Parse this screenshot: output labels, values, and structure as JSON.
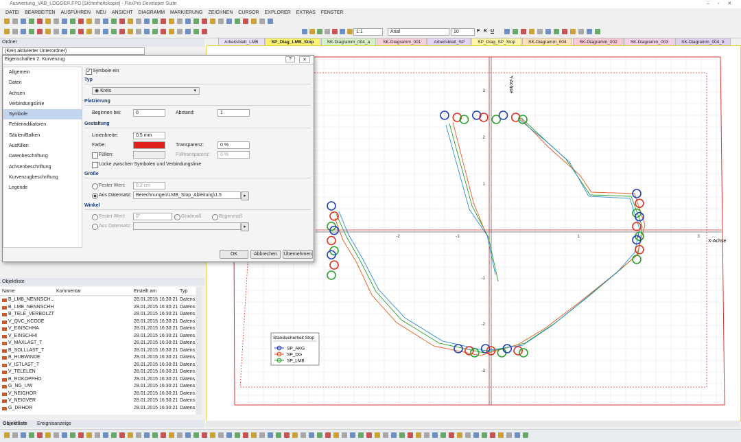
{
  "window": {
    "title": "Auswertung_VAB_LOGGER.FPD [Sicherheitskopie] - FlexPro Developer Suite"
  },
  "menu": [
    "DATEI",
    "BEARBEITEN",
    "AUSFÜHREN",
    "NEU",
    "ANSICHT",
    "DIAGRAMM",
    "MARKIERUNG",
    "ZEICHNEN",
    "CURSOR",
    "EXPLORER",
    "EXTRAS",
    "FENSTER"
  ],
  "toolbar": {
    "zoom": "1:1",
    "font": "Arial",
    "size": "10",
    "bold": "F",
    "italic": "K",
    "underline": "U"
  },
  "folder_panel": {
    "title": "Ordner",
    "combo": "(Kein aktivierter Unterordner)"
  },
  "tabs": [
    "Arbeitsblatt_LMB",
    "SP_Diag_LMB_Stop",
    "SK-Diagramm_004_a",
    "SK-Diagramm_001",
    "Arbeitsblatt_SP",
    "SP_Diag_SP_Stop",
    "SK-Diagramm_004",
    "SK-Diagramm_002",
    "SK-Diagramm_003",
    "SK-Diagramm_004_b"
  ],
  "dialog": {
    "title": "Eigenschaften 2. Kurvenzug",
    "nav": [
      "Allgemein",
      "Daten",
      "Achsen",
      "Verbindungslinie",
      "Symbole",
      "Fehlerindikatoren",
      "Säulen/Balken",
      "Ausfüllen",
      "Datenbeschriftung",
      "Achsenbeschriftung",
      "Kurvenzugbeschriftung",
      "Legende"
    ],
    "symbols_on": "Symbole ein",
    "type_section": "Typ",
    "type_value": "Kreis",
    "placement_section": "Platzierung",
    "start_label": "Beginnen bei:",
    "start_value": "0",
    "spacing_label": "Abstand:",
    "spacing_value": "1",
    "design_section": "Gestaltung",
    "line_width_label": "Linienbreite:",
    "line_width_value": "0,5 mm",
    "color_label": "Farbe:",
    "transparency_label": "Transparenz:",
    "transparency_value": "0 %",
    "fill_label": "Füllen:",
    "fill_transparency_label": "Fülltransparenz:",
    "fill_transparency_value": "0 %",
    "gap_label": "Lücke zwischen Symbolen und Verbindungslinie",
    "size_section": "Größe",
    "size_fixed_label": "Fester Wert:",
    "size_fixed_value": "0,2 cm",
    "size_dataset_label": "Aus Datensatz:",
    "size_dataset_value": "Berechnungen\\LMB_Stop_Ableitung\\1.5",
    "angle_section": "Winkel",
    "angle_fixed_label": "Fester Wert:",
    "angle_fixed_value": "0°",
    "degrees_label": "Gradmaß",
    "radians_label": "Bogenmaß",
    "angle_dataset_label": "Aus Datensatz:",
    "buttons": [
      "OK",
      "Abbrechen",
      "Übernehmen"
    ]
  },
  "object_list": {
    "title": "Objektliste",
    "columns": [
      "Name",
      "Kommentar",
      "Erstellt am",
      "Typ"
    ],
    "rows": [
      [
        "B_LMB_NENNSCH...",
        "28.01.2015 16:30:21",
        "Datens..."
      ],
      [
        "B_LMB_NENNSCHH",
        "28.01.2015 16:30:21",
        "Datens..."
      ],
      [
        "B_TELE_VERBOLZT",
        "28.01.2015 16:30:21",
        "Datens..."
      ],
      [
        "V_QVC_KCODE",
        "28.01.2015 16:30:21",
        "Datens..."
      ],
      [
        "V_EINSCHHA",
        "28.01.2015 16:30:21",
        "Datens..."
      ],
      [
        "V_EINSCHHI",
        "28.01.2015 16:30:21",
        "Datens..."
      ],
      [
        "V_MAXLAST_T",
        "28.01.2015 16:30:21",
        "Datens..."
      ],
      [
        "B_SOLLLAST_T",
        "28.01.2015 16:30:21",
        "Datens..."
      ],
      [
        "B_HUBWINDE",
        "28.01.2015 16:30:21",
        "Datens..."
      ],
      [
        "V_ISTLAST_T",
        "28.01.2015 16:30:21",
        "Datens..."
      ],
      [
        "V_TELELEN",
        "28.01.2015 16:30:21",
        "Datens..."
      ],
      [
        "B_ROKOPFHO",
        "28.01.2015 16:30:21",
        "Datens..."
      ],
      [
        "G_NG_UW",
        "28.01.2015 16:30:21",
        "Datens..."
      ],
      [
        "V_NEIGHOR",
        "28.01.2015 16:30:21",
        "Datens..."
      ],
      [
        "V_NEIGVER",
        "28.01.2015 16:30:21",
        "Datens..."
      ],
      [
        "G_DRHOR",
        "28.01.2015 16:30:21",
        "Datens..."
      ]
    ],
    "tabs": [
      "Objektliste",
      "Ereignisanzeige"
    ]
  },
  "diagram": {
    "x_axis_label": "X-Achse",
    "y_axis_label": "Y-Achse",
    "xticks": [
      "-2",
      "-1",
      "1",
      "2",
      "3"
    ],
    "yticks": [
      "3",
      "2",
      "1",
      "-1",
      "-2",
      "-3"
    ],
    "legend": {
      "title": "Standsicherheit Stop",
      "entries": [
        "SP_AKG",
        "SP_DG",
        "SP_LMB"
      ]
    }
  }
}
